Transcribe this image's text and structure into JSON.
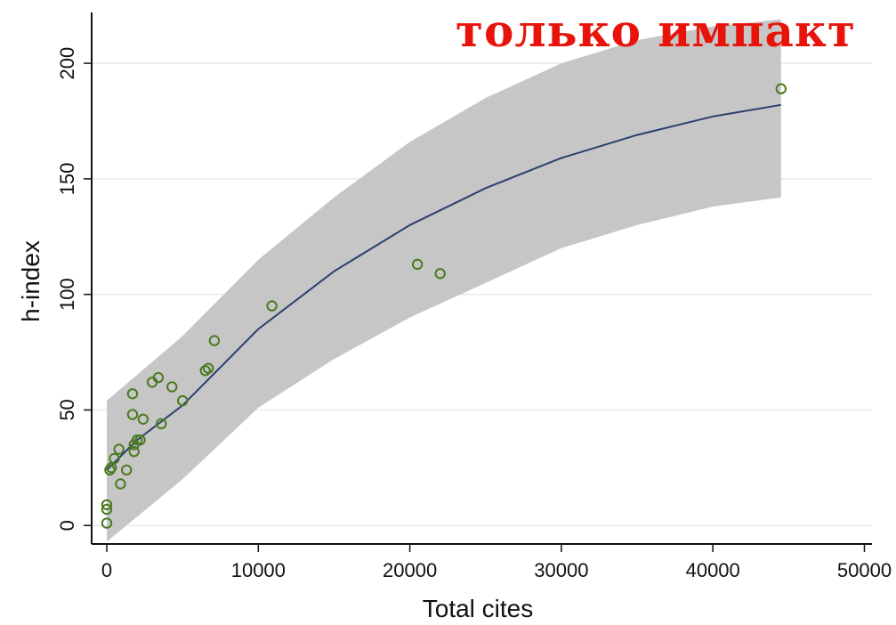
{
  "overlay_title": "только импакт",
  "chart_data": {
    "type": "scatter",
    "title": "",
    "xlabel": "Total cites",
    "ylabel": "h-index",
    "xlim": [
      -1000,
      50500
    ],
    "ylim": [
      -8,
      222
    ],
    "x_ticks": [
      0,
      10000,
      20000,
      30000,
      40000,
      50000
    ],
    "y_ticks": [
      0,
      50,
      100,
      150,
      200
    ],
    "grid": "horizontal",
    "colors": {
      "points": "#4a7a1f",
      "fit_line": "#2a3f6e",
      "confidence_band": "#c6c6c6",
      "grid": "#dde8ee"
    },
    "series": [
      {
        "kind": "points",
        "x": [
          0,
          0,
          0,
          200,
          300,
          500,
          800,
          900,
          1300,
          1700,
          1700,
          1800,
          1800,
          2000,
          2200,
          2400,
          3000,
          3400,
          3600,
          4300,
          5000,
          6500,
          6700,
          7100,
          10900,
          20500,
          22000,
          44500
        ],
        "y": [
          1,
          7,
          9,
          24,
          25,
          29,
          33,
          18,
          24,
          48,
          57,
          32,
          35,
          37,
          37,
          46,
          62,
          64,
          44,
          60,
          54,
          67,
          68,
          80,
          95,
          113,
          109,
          189
        ]
      },
      {
        "kind": "fit",
        "x": [
          0,
          2000,
          5000,
          10000,
          15000,
          20000,
          25000,
          30000,
          35000,
          40000,
          44500
        ],
        "y": [
          24,
          37,
          52,
          85,
          110,
          130,
          146,
          159,
          169,
          177,
          182
        ]
      },
      {
        "kind": "band",
        "x": [
          0,
          5000,
          10000,
          15000,
          20000,
          25000,
          30000,
          35000,
          40000,
          44500
        ],
        "lower": [
          -7,
          20,
          51,
          72,
          90,
          105,
          120,
          130,
          138,
          142
        ],
        "upper": [
          54,
          82,
          115,
          142,
          166,
          185,
          200,
          210,
          216,
          219
        ]
      }
    ]
  }
}
